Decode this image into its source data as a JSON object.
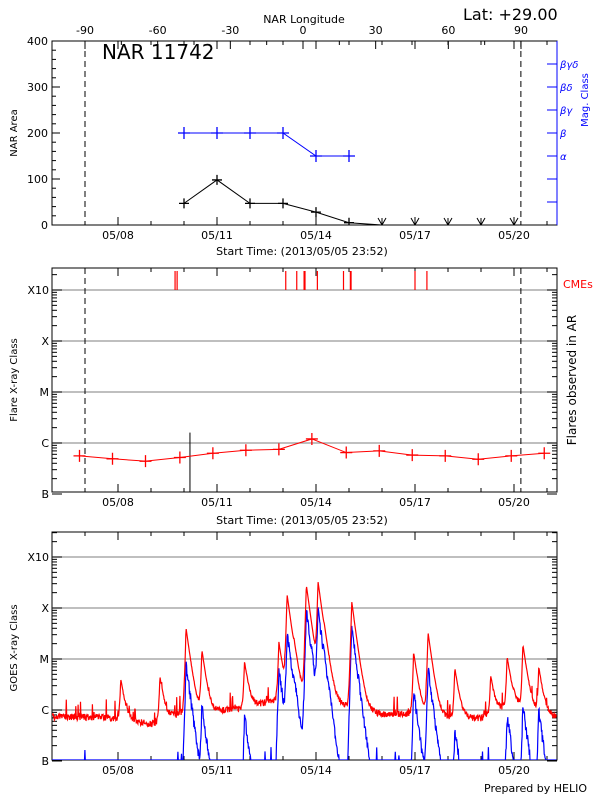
{
  "header": {
    "lat_label": "Lat: +29.00",
    "region_title": "NAR 11742",
    "footer": "Prepared by HELIO"
  },
  "colors": {
    "area": "#000000",
    "mag_class": "#0000ff",
    "flare": "#ff0000",
    "cme": "#ff0000",
    "goes_long": "#ff0000",
    "goes_short": "#0000ff",
    "grid": "#999999"
  },
  "chart_data": [
    {
      "type": "line",
      "title": "NAR 11742",
      "xlabel": "Start Time: (2013/05/05 23:52)",
      "ylabel": "NAR Area",
      "y2label": "Mag. Class",
      "top_xlabel": "NAR Longitude",
      "xlim": [
        "2013-05-05 23:52",
        "2013-05-21 07:00"
      ],
      "ylim": [
        0,
        400
      ],
      "x_tick_labels": [
        "05/08",
        "05/11",
        "05/14",
        "05/17",
        "05/20"
      ],
      "y_tick_labels": [
        "0",
        "100",
        "200",
        "300",
        "400"
      ],
      "top_tick_labels": [
        "-90",
        "-60",
        "-30",
        "0",
        "30",
        "60",
        "90"
      ],
      "mag_class_tick_labels": [
        "α",
        "β",
        "βγ",
        "βδ",
        "βγδ"
      ],
      "limb_lines": [
        "2013-05-07 00:00",
        "2013-05-20 05:00"
      ],
      "x": [
        "2013-05-10 00:00",
        "2013-05-11 00:00",
        "2013-05-12 00:00",
        "2013-05-13 00:00",
        "2013-05-14 00:00",
        "2013-05-15 00:00",
        "2013-05-16 00:00",
        "2013-05-17 00:00",
        "2013-05-18 00:00",
        "2013-05-19 00:00",
        "2013-05-20 00:00"
      ],
      "series": [
        {
          "name": "NAR Area",
          "values": [
            47,
            98,
            47,
            47,
            28,
            5,
            0,
            0,
            0,
            0,
            0
          ]
        },
        {
          "name": "Mag. Class",
          "values": [
            "β",
            "β",
            "β",
            "β",
            "α",
            "α",
            null,
            null,
            null,
            null,
            null
          ]
        }
      ]
    },
    {
      "type": "line",
      "xlabel": "Start Time: (2013/05/05 23:52)",
      "ylabel": "Flare X-ray Class",
      "y2label": "Flares observed in AR",
      "cme_label": "CMEs",
      "y_scale": "log",
      "y_tick_labels": [
        "B",
        "C",
        "M",
        "X",
        "X10"
      ],
      "x_tick_labels": [
        "05/08",
        "05/11",
        "05/14",
        "05/17",
        "05/20"
      ],
      "grid": true,
      "x": [
        "2013-05-06 20:00",
        "2013-05-07 20:00",
        "2013-05-08 20:00",
        "2013-05-09 21:00",
        "2013-05-10 21:00",
        "2013-05-11 21:00",
        "2013-05-12 21:00",
        "2013-05-13 21:00",
        "2013-05-14 22:00",
        "2013-05-15 22:00",
        "2013-05-16 22:00",
        "2013-05-17 22:00",
        "2013-05-18 22:00",
        "2013-05-19 22:00",
        "2013-05-20 22:00"
      ],
      "series": [
        {
          "values": [
            "B5.6",
            "B4.9",
            "B4.4",
            "B5.2",
            "B6.3",
            "B7.2",
            "B7.5",
            "C1.2",
            "B6.5",
            "B7.0",
            "B5.8",
            "B5.6",
            "B4.8",
            "B5.6",
            "B6.3"
          ]
        }
      ],
      "event_line": {
        "time": "2013-05-10 04:20",
        "class": "C1.6"
      },
      "cme_times": [
        "2013-05-09 17:30",
        "2013-05-09 19:00",
        "2013-05-13 02:00",
        "2013-05-13 10:00",
        "2013-05-13 15:20",
        "2013-05-13 16:00",
        "2013-05-14 01:00",
        "2013-05-14 20:00",
        "2013-05-15 01:00",
        "2013-05-15 01:30",
        "2013-05-17 00:00",
        "2013-05-17 08:40"
      ]
    },
    {
      "type": "line",
      "ylabel": "GOES X-ray Class",
      "y_scale": "log",
      "y_tick_labels": [
        "B",
        "C",
        "M",
        "X",
        "X10"
      ],
      "x_tick_labels": [
        "05/08",
        "05/11",
        "05/14",
        "05/17",
        "05/20"
      ],
      "grid": true,
      "background_long": [
        [
          "2013-05-06 00:00",
          "B6.4"
        ],
        [
          "2013-05-08 00:00",
          "B6.0"
        ],
        [
          "2013-05-09 00:00",
          "B4.5"
        ],
        [
          "2013-05-10 00:00",
          "B8.0"
        ],
        [
          "2013-05-11 00:00",
          "B8.0"
        ],
        [
          "2013-05-12 00:00",
          "C1.0"
        ],
        [
          "2013-05-13 00:00",
          "C1.5"
        ],
        [
          "2013-05-14 00:00",
          "C1.5"
        ],
        [
          "2013-05-15 00:00",
          "C1.0"
        ],
        [
          "2013-05-16 00:00",
          "B7.0"
        ],
        [
          "2013-05-17 00:00",
          "B7.5"
        ],
        [
          "2013-05-18 00:00",
          "B6.0"
        ],
        [
          "2013-05-19 00:00",
          "B6.0"
        ],
        [
          "2013-05-20 00:00",
          "C1.2"
        ],
        [
          "2013-05-21 00:00",
          "B7.0"
        ],
        [
          "2013-05-21 07:00",
          "B6.0"
        ]
      ],
      "peaks_long": [
        [
          "2013-05-08 02:00",
          "C3.4"
        ],
        [
          "2013-05-09 06:30",
          "C4.0"
        ],
        [
          "2013-05-10 01:30",
          "M4.0"
        ],
        [
          "2013-05-10 13:00",
          "M1.4"
        ],
        [
          "2013-05-11 20:00",
          "C8.0"
        ],
        [
          "2013-05-12 21:00",
          "M2.0"
        ],
        [
          "2013-05-13 03:00",
          "X1.8"
        ],
        [
          "2013-05-13 08:00",
          "C6.0"
        ],
        [
          "2013-05-13 17:00",
          "X2.8"
        ],
        [
          "2013-05-14 01:30",
          "X3.2"
        ],
        [
          "2013-05-14 06:00",
          "C9.0"
        ],
        [
          "2013-05-15 02:00",
          "X1.3"
        ],
        [
          "2013-05-16 23:00",
          "M1.3"
        ],
        [
          "2013-05-17 09:30",
          "M3.2"
        ],
        [
          "2013-05-18 05:00",
          "C6.0"
        ],
        [
          "2013-05-19 07:00",
          "C4.0"
        ],
        [
          "2013-05-19 19:00",
          "M1.0"
        ],
        [
          "2013-05-20 06:30",
          "M1.8"
        ],
        [
          "2013-05-20 18:00",
          "C6.0"
        ]
      ],
      "peaks_short": [
        [
          "2013-05-10 01:30",
          "M1.0"
        ],
        [
          "2013-05-10 13:00",
          "C1.5"
        ],
        [
          "2013-05-11 20:00",
          "C1.0"
        ],
        [
          "2013-05-12 21:00",
          "C8.0"
        ],
        [
          "2013-05-13 03:00",
          "M4.0"
        ],
        [
          "2013-05-13 08:00",
          "C2.0"
        ],
        [
          "2013-05-13 17:00",
          "X1.1"
        ],
        [
          "2013-05-14 01:30",
          "X1.1"
        ],
        [
          "2013-05-14 06:00",
          "C3.0"
        ],
        [
          "2013-05-15 02:00",
          "M5.0"
        ],
        [
          "2013-05-16 23:00",
          "C3.0"
        ],
        [
          "2013-05-17 09:30",
          "C8.0"
        ],
        [
          "2013-05-18 05:00",
          "B5.0"
        ],
        [
          "2013-05-19 19:00",
          "C1.0"
        ],
        [
          "2013-05-20 06:30",
          "C1.5"
        ],
        [
          "2013-05-20 18:00",
          "C1.2"
        ]
      ]
    }
  ]
}
